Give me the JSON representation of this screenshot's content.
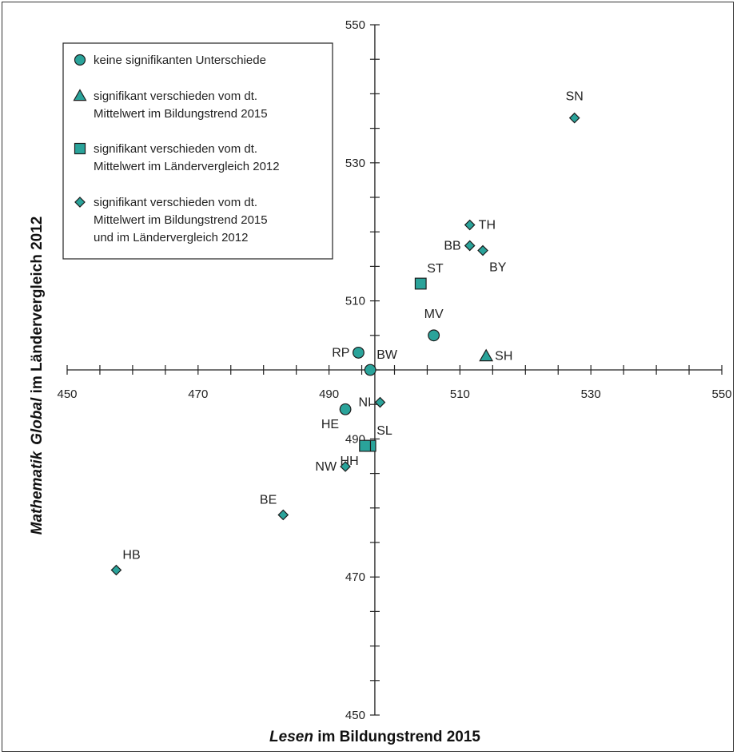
{
  "chart_data": {
    "type": "scatter",
    "xlabel": {
      "italic": "Lesen",
      "rest": " im Bildungstrend 2015"
    },
    "ylabel": {
      "italic1": "Mathematik",
      "italic2": "Global",
      "rest": " im Ländervergleich 2012"
    },
    "xlim": [
      450,
      550
    ],
    "ylim": [
      450,
      550
    ],
    "x_ticks": [
      "450",
      "470",
      "490",
      "510",
      "530",
      "550"
    ],
    "y_ticks": [
      "550",
      "530",
      "510",
      "490",
      "470",
      "450"
    ],
    "axes_cross": {
      "x": 497,
      "y": 500
    },
    "marker_color": "#2aa39a",
    "legend": {
      "placement": "top-left",
      "entries": [
        {
          "marker": "circle",
          "lines": [
            "keine signifikanten Unterschiede"
          ]
        },
        {
          "marker": "triangle",
          "lines": [
            "signifikant verschieden vom dt.",
            "Mittelwert im Bildungstrend 2015"
          ]
        },
        {
          "marker": "square",
          "lines": [
            "signifikant verschieden vom dt.",
            "Mittelwert im Ländervergleich 2012"
          ]
        },
        {
          "marker": "diamond",
          "lines": [
            "signifikant verschieden vom dt.",
            "Mittelwert im Bildungstrend 2015",
            "und im Ländervergleich 2012"
          ]
        }
      ]
    },
    "points": [
      {
        "label": "SN",
        "x": 527.5,
        "y": 536.5,
        "marker": "diamond",
        "label_pos": "above"
      },
      {
        "label": "TH",
        "x": 511.5,
        "y": 521,
        "marker": "diamond",
        "label_pos": "right"
      },
      {
        "label": "BB",
        "x": 511.5,
        "y": 518,
        "marker": "diamond",
        "label_pos": "left"
      },
      {
        "label": "BY",
        "x": 513.5,
        "y": 517.3,
        "marker": "diamond",
        "label_pos": "below"
      },
      {
        "label": "ST",
        "x": 504,
        "y": 512.5,
        "marker": "square",
        "label_pos": "above-right"
      },
      {
        "label": "MV",
        "x": 506,
        "y": 505,
        "marker": "circle",
        "label_pos": "above"
      },
      {
        "label": "SH",
        "x": 514,
        "y": 502,
        "marker": "triangle",
        "label_pos": "right"
      },
      {
        "label": "RP",
        "x": 494.5,
        "y": 502.5,
        "marker": "circle",
        "label_pos": "left"
      },
      {
        "label": "BW",
        "x": 496.3,
        "y": 500,
        "marker": "circle",
        "label_pos": "above-right"
      },
      {
        "label": "NI",
        "x": 497.8,
        "y": 495.3,
        "marker": "diamond",
        "label_pos": "left"
      },
      {
        "label": "HE",
        "x": 492.5,
        "y": 494.3,
        "marker": "circle",
        "label_pos": "below-left"
      },
      {
        "label": "SL",
        "x": 496.3,
        "y": 489,
        "marker": "square",
        "label_pos": "above-right"
      },
      {
        "label": "HH",
        "x": 495.5,
        "y": 489,
        "marker": "square",
        "label_pos": "below-left"
      },
      {
        "label": "NW",
        "x": 492.5,
        "y": 486,
        "marker": "diamond",
        "label_pos": "left"
      },
      {
        "label": "BE",
        "x": 483,
        "y": 479,
        "marker": "diamond",
        "label_pos": "above-left"
      },
      {
        "label": "HB",
        "x": 457.5,
        "y": 471,
        "marker": "diamond",
        "label_pos": "above-right"
      }
    ]
  }
}
